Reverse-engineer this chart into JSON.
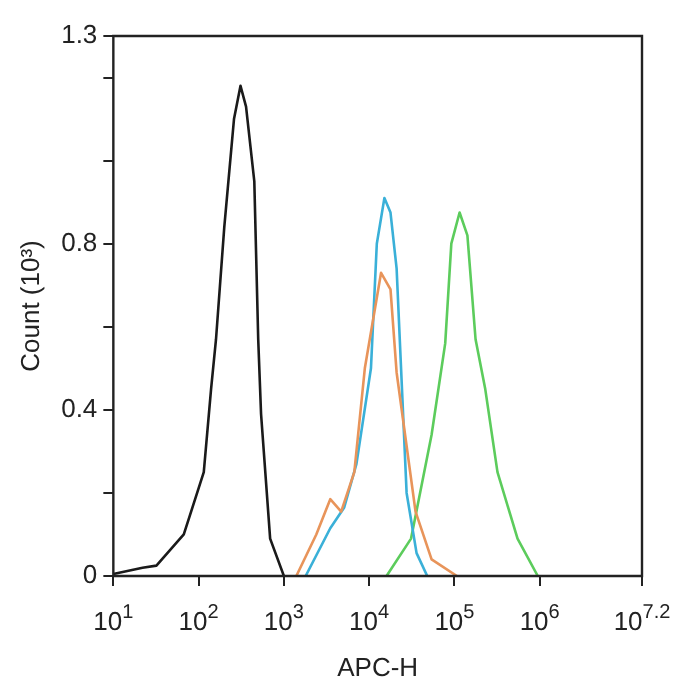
{
  "chart_data": {
    "type": "line",
    "xlabel": "APC-H",
    "ylabel": "Count (10³)",
    "log": "x",
    "marker": "none",
    "xlim": [
      10,
      15848932
    ],
    "xticks": [
      {
        "value": 10,
        "label": "10$^{1}$"
      },
      {
        "value": 100,
        "label": "10$^{2}$"
      },
      {
        "value": 1000,
        "label": "10$^{3}$"
      },
      {
        "value": 10000,
        "label": "10$^{4}$"
      },
      {
        "value": 100000,
        "label": "10$^{5}$"
      },
      {
        "value": 1000000,
        "label": "10$^{6}$"
      },
      {
        "value": 15848932,
        "label": "10$^{7.2}$"
      }
    ],
    "ylim": [
      0,
      1.3
    ],
    "yticks": [
      0,
      {
        "value": 0.2,
        "label": null
      },
      0.4,
      {
        "value": 0.6,
        "label": null
      },
      0.8,
      {
        "value": 1.0,
        "label": null
      },
      {
        "value": 1.2,
        "label": null
      },
      1.3
    ],
    "series": [
      {
        "color": "#1a1a1a",
        "x": [
          10,
          22,
          32,
          67,
          115,
          140,
          160,
          200,
          260,
          310,
          360,
          450,
          500,
          540,
          690,
          1000
        ],
        "values": [
          0.005,
          0.02,
          0.025,
          0.1,
          0.25,
          0.45,
          0.57,
          0.84,
          1.1,
          1.18,
          1.13,
          0.95,
          0.57,
          0.39,
          0.09,
          0
        ]
      },
      {
        "color": "#e8945a",
        "x": [
          1400,
          2400,
          3500,
          4700,
          6700,
          8900,
          13800,
          17800,
          21000,
          35000,
          54000,
          107000
        ],
        "values": [
          0,
          0.1,
          0.185,
          0.155,
          0.25,
          0.5,
          0.73,
          0.69,
          0.49,
          0.155,
          0.04,
          0
        ]
      },
      {
        "color": "#3ab0d8",
        "x": [
          1800,
          3500,
          5100,
          7100,
          10500,
          12300,
          15100,
          17800,
          21000,
          27500,
          36000,
          48000
        ],
        "values": [
          0,
          0.115,
          0.165,
          0.27,
          0.5,
          0.8,
          0.91,
          0.875,
          0.74,
          0.2,
          0.055,
          0
        ]
      },
      {
        "color": "#5ccc5c",
        "x": [
          16000,
          31000,
          54000,
          78000,
          92000,
          115000,
          142000,
          177000,
          230000,
          320000,
          550000,
          950000
        ],
        "values": [
          0,
          0.09,
          0.34,
          0.56,
          0.8,
          0.875,
          0.82,
          0.57,
          0.45,
          0.25,
          0.09,
          0
        ]
      }
    ]
  }
}
